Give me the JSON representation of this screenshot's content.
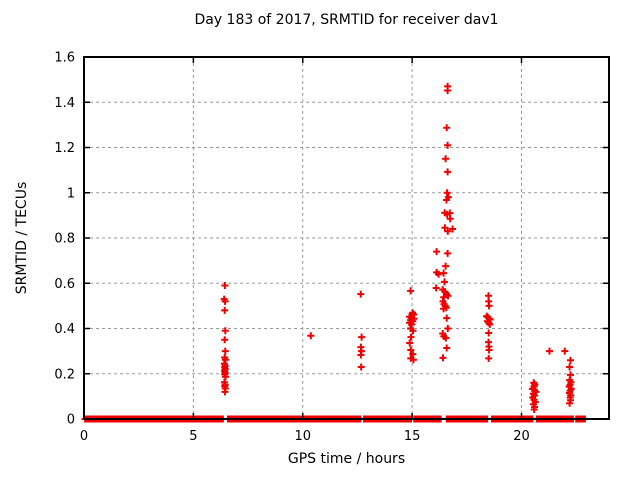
{
  "chart_data": {
    "type": "scatter",
    "title": "Day 183 of 2017, SRMTID for receiver dav1",
    "xlabel": "GPS time / hours",
    "ylabel": "SRMTID / TECUs",
    "xlim": [
      0,
      24
    ],
    "ylim": [
      0,
      1.6
    ],
    "grid": true,
    "legend_position": "none",
    "marker": "plus",
    "colors": {
      "marker": "#ee0000",
      "grid": "#9a9a9a",
      "fg": "#000000",
      "bg": "#ffffff"
    },
    "xticks": [
      {
        "v": 0,
        "label": "0"
      },
      {
        "v": 5,
        "label": "5"
      },
      {
        "v": 10,
        "label": "10"
      },
      {
        "v": 15,
        "label": "15"
      },
      {
        "v": 20,
        "label": "20"
      }
    ],
    "yticks": [
      {
        "v": 0.0,
        "label": "0"
      },
      {
        "v": 0.2,
        "label": "0.2"
      },
      {
        "v": 0.4,
        "label": "0.4"
      },
      {
        "v": 0.6,
        "label": "0.6"
      },
      {
        "v": 0.8,
        "label": "0.8"
      },
      {
        "v": 1.0,
        "label": "1"
      },
      {
        "v": 1.2,
        "label": "1.2"
      },
      {
        "v": 1.4,
        "label": "1.4"
      },
      {
        "v": 1.6,
        "label": "1.6"
      }
    ],
    "baseline_value": 0,
    "baseline_step": 0.05,
    "baseline_segments": [
      [
        0.05,
        6.39
      ],
      [
        6.58,
        12.64
      ],
      [
        12.8,
        14.95
      ],
      [
        15.1,
        16.34
      ],
      [
        16.58,
        18.45
      ],
      [
        18.65,
        20.54
      ],
      [
        20.7,
        22.35
      ],
      [
        22.5,
        22.92
      ]
    ],
    "points": [
      [
        6.44,
        0.59
      ],
      [
        6.41,
        0.53
      ],
      [
        6.45,
        0.52
      ],
      [
        6.43,
        0.48
      ],
      [
        6.46,
        0.39
      ],
      [
        6.43,
        0.35
      ],
      [
        6.46,
        0.3
      ],
      [
        6.43,
        0.272
      ],
      [
        6.47,
        0.262
      ],
      [
        6.42,
        0.245
      ],
      [
        6.45,
        0.235
      ],
      [
        6.43,
        0.228
      ],
      [
        6.46,
        0.22
      ],
      [
        6.42,
        0.213
      ],
      [
        6.45,
        0.205
      ],
      [
        6.43,
        0.197
      ],
      [
        6.47,
        0.187
      ],
      [
        6.42,
        0.162
      ],
      [
        6.45,
        0.152
      ],
      [
        6.43,
        0.145
      ],
      [
        6.46,
        0.135
      ],
      [
        6.44,
        0.12
      ],
      [
        10.37,
        0.368
      ],
      [
        12.65,
        0.552
      ],
      [
        12.69,
        0.362
      ],
      [
        12.66,
        0.318
      ],
      [
        12.68,
        0.3
      ],
      [
        12.66,
        0.283
      ],
      [
        12.67,
        0.23
      ],
      [
        14.93,
        0.566
      ],
      [
        15.02,
        0.47
      ],
      [
        15.07,
        0.462
      ],
      [
        14.88,
        0.452
      ],
      [
        14.98,
        0.447
      ],
      [
        15.08,
        0.443
      ],
      [
        14.93,
        0.437
      ],
      [
        15.03,
        0.432
      ],
      [
        14.88,
        0.425
      ],
      [
        14.98,
        0.418
      ],
      [
        14.93,
        0.4
      ],
      [
        15.04,
        0.39
      ],
      [
        14.95,
        0.362
      ],
      [
        14.89,
        0.336
      ],
      [
        14.94,
        0.305
      ],
      [
        15.03,
        0.287
      ],
      [
        14.94,
        0.268
      ],
      [
        15.06,
        0.262
      ],
      [
        16.62,
        1.47
      ],
      [
        16.62,
        1.452
      ],
      [
        16.58,
        1.287
      ],
      [
        16.62,
        1.21
      ],
      [
        16.53,
        1.15
      ],
      [
        16.62,
        1.092
      ],
      [
        16.6,
        1.0
      ],
      [
        16.66,
        0.98
      ],
      [
        16.57,
        0.968
      ],
      [
        16.49,
        0.912
      ],
      [
        16.6,
        0.905
      ],
      [
        16.72,
        0.91
      ],
      [
        16.74,
        0.885
      ],
      [
        16.5,
        0.845
      ],
      [
        16.85,
        0.84
      ],
      [
        16.63,
        0.83
      ],
      [
        16.12,
        0.74
      ],
      [
        16.62,
        0.732
      ],
      [
        16.53,
        0.676
      ],
      [
        16.12,
        0.648
      ],
      [
        16.44,
        0.645
      ],
      [
        16.21,
        0.64
      ],
      [
        16.48,
        0.606
      ],
      [
        16.1,
        0.579
      ],
      [
        16.4,
        0.572
      ],
      [
        16.5,
        0.563
      ],
      [
        16.57,
        0.552
      ],
      [
        16.64,
        0.545
      ],
      [
        16.45,
        0.538
      ],
      [
        16.41,
        0.52
      ],
      [
        16.46,
        0.508
      ],
      [
        16.51,
        0.5
      ],
      [
        16.56,
        0.492
      ],
      [
        16.44,
        0.487
      ],
      [
        16.58,
        0.446
      ],
      [
        16.63,
        0.4
      ],
      [
        16.4,
        0.378
      ],
      [
        16.45,
        0.365
      ],
      [
        16.54,
        0.358
      ],
      [
        16.58,
        0.314
      ],
      [
        16.41,
        0.27
      ],
      [
        18.49,
        0.545
      ],
      [
        18.5,
        0.52
      ],
      [
        18.52,
        0.5
      ],
      [
        18.41,
        0.455
      ],
      [
        18.46,
        0.45
      ],
      [
        18.52,
        0.443
      ],
      [
        18.57,
        0.44
      ],
      [
        18.44,
        0.432
      ],
      [
        18.5,
        0.425
      ],
      [
        18.55,
        0.418
      ],
      [
        18.5,
        0.38
      ],
      [
        18.49,
        0.34
      ],
      [
        18.51,
        0.32
      ],
      [
        18.52,
        0.305
      ],
      [
        18.5,
        0.268
      ],
      [
        20.56,
        0.16
      ],
      [
        20.61,
        0.152
      ],
      [
        20.57,
        0.143
      ],
      [
        20.5,
        0.133
      ],
      [
        20.6,
        0.127
      ],
      [
        20.66,
        0.12
      ],
      [
        20.55,
        0.112
      ],
      [
        20.6,
        0.104
      ],
      [
        20.51,
        0.095
      ],
      [
        20.57,
        0.085
      ],
      [
        20.63,
        0.075
      ],
      [
        20.55,
        0.065
      ],
      [
        20.6,
        0.053
      ],
      [
        20.58,
        0.042
      ],
      [
        21.28,
        0.3
      ],
      [
        21.98,
        0.3
      ],
      [
        22.24,
        0.26
      ],
      [
        22.2,
        0.23
      ],
      [
        22.24,
        0.195
      ],
      [
        22.2,
        0.172
      ],
      [
        22.26,
        0.162
      ],
      [
        22.22,
        0.152
      ],
      [
        22.18,
        0.143
      ],
      [
        22.27,
        0.133
      ],
      [
        22.22,
        0.125
      ],
      [
        22.19,
        0.115
      ],
      [
        22.25,
        0.105
      ],
      [
        22.22,
        0.095
      ],
      [
        22.24,
        0.083
      ],
      [
        22.2,
        0.07
      ]
    ]
  }
}
